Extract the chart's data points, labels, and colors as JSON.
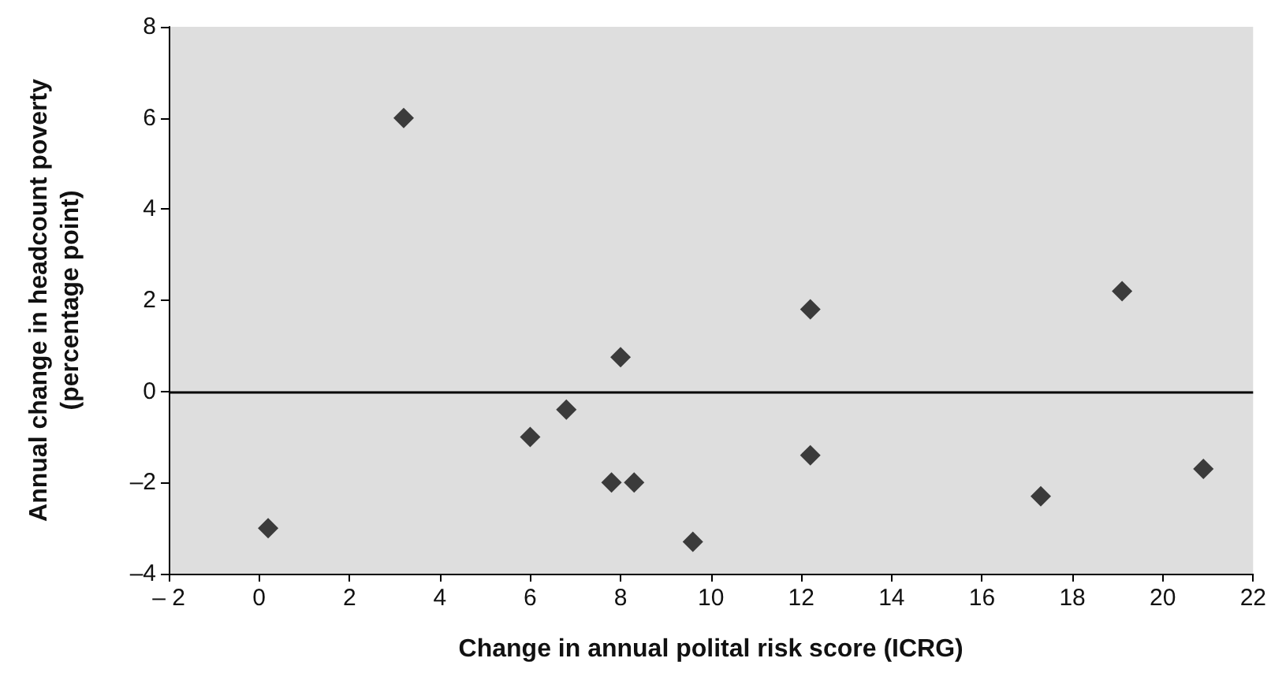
{
  "chart_data": {
    "type": "scatter",
    "xlabel": "Change in annual polital risk score (ICRG)",
    "ylabel": "Annual change in headcount poverty\n(percentage point)",
    "x": [
      0.2,
      3.2,
      6,
      6.8,
      7.8,
      8,
      8.3,
      9.6,
      12.2,
      12.2,
      17.3,
      19.1,
      20.9
    ],
    "series": [
      {
        "color": "#111111",
        "values": [
          -3,
          6,
          -1,
          -0.4,
          -2,
          0.75,
          -2,
          -3.3,
          1.8,
          -1.4,
          -2.3,
          2.2,
          -1.7
        ]
      }
    ],
    "xlim": [
      -2,
      22
    ],
    "xticks": [
      {
        "value": -2,
        "label": "– 2"
      },
      0,
      2,
      4,
      6,
      8,
      10,
      12,
      14,
      16,
      18,
      20,
      22
    ],
    "ylim": [
      -4,
      8
    ],
    "yticks": [
      {
        "value": -4,
        "label": "–4"
      },
      {
        "value": -2,
        "label": "–2"
      },
      0,
      2,
      4,
      6,
      8
    ],
    "ref_lines": [
      {
        "axis": "y",
        "value": 0,
        "color": "#000000"
      }
    ],
    "marker": "diamond",
    "grid": false
  }
}
